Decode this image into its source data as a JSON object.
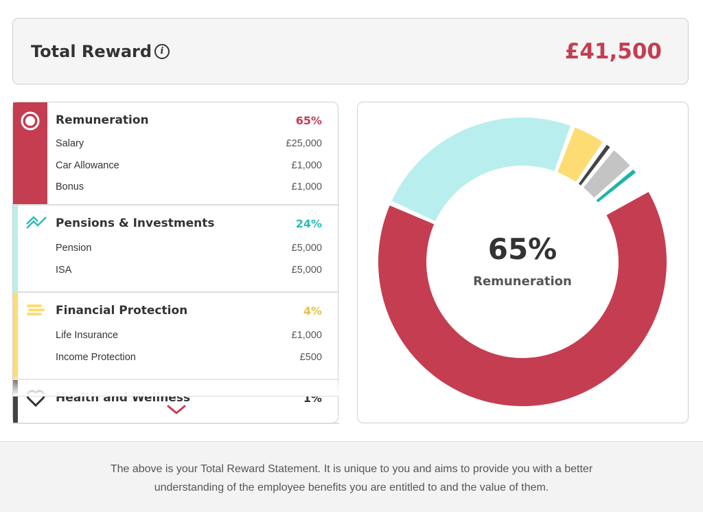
{
  "header": {
    "title": "Total Reward",
    "total": "£41,500"
  },
  "sections": [
    {
      "title": "Remuneration",
      "pct": 65,
      "pct_label": "65%",
      "color": "#c53d51",
      "text_color": "#c53d51",
      "items": [
        {
          "label": "Salary",
          "amount": "£25,000"
        },
        {
          "label": "Car Allowance",
          "amount": "£1,000"
        },
        {
          "label": "Bonus",
          "amount": "£1,000"
        }
      ]
    },
    {
      "title": "Pensions & Investments",
      "pct": 24,
      "pct_label": "24%",
      "color": "#b8eeee",
      "text_color": "#2bbcb5",
      "items": [
        {
          "label": "Pension",
          "amount": "£5,000"
        },
        {
          "label": "ISA",
          "amount": "£5,000"
        }
      ]
    },
    {
      "title": "Financial Protection",
      "pct": 4,
      "pct_label": "4%",
      "color": "#fddc74",
      "text_color": "#e6bf48",
      "items": [
        {
          "label": "Life Insurance",
          "amount": "£1,000"
        },
        {
          "label": "Income Protection",
          "amount": "£500"
        }
      ]
    },
    {
      "title": "Health and Wellness",
      "pct": 1,
      "pct_label": "1%",
      "color": "#444444",
      "text_color": "#333333",
      "items": []
    }
  ],
  "donut": {
    "start_angle": 60,
    "other_segments": [
      {
        "value": 3,
        "color": "#c4c4c4"
      },
      {
        "value": 1,
        "color": "#1fb3a6"
      }
    ]
  },
  "footer": {
    "text": "The above is your Total Reward Statement. It is unique to you and aims to provide you with a better understanding of the employee benefits you are entitled to and the value of them."
  }
}
